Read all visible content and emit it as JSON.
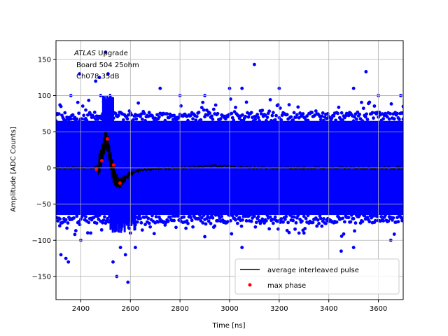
{
  "chart_data": {
    "type": "scatter",
    "xlabel": "Time [ns]",
    "ylabel": "Amplitude [ADC Counts]",
    "xlim": [
      2300,
      3700
    ],
    "ylim": [
      -182,
      176
    ],
    "xticks": [
      2400,
      2600,
      2800,
      3000,
      3200,
      3400,
      3600
    ],
    "yticks": [
      -150,
      -100,
      -50,
      0,
      50,
      100,
      150
    ],
    "grid": true,
    "legend_position": "lower-right",
    "annotation": {
      "line1_italic": "ATLAS",
      "line1_rest": " Upgrade",
      "line2": "Board 504 25ohm",
      "line3": "Ch078 35dB"
    },
    "colors": {
      "samples": "#0000ff",
      "average": "#000000",
      "max_phase": "#ff0000"
    },
    "series": [
      {
        "name": "",
        "kind": "dense-band",
        "band_y": [
          -65,
          65
        ],
        "note_outliers": [
          [
            2305,
            75
          ],
          [
            2315,
            -80
          ],
          [
            2320,
            -120
          ],
          [
            2340,
            -125
          ],
          [
            2350,
            -130
          ],
          [
            2360,
            100
          ],
          [
            2395,
            130
          ],
          [
            2400,
            -100
          ],
          [
            2420,
            80
          ],
          [
            2440,
            -90
          ],
          [
            2460,
            120
          ],
          [
            2475,
            125
          ],
          [
            2500,
            160
          ],
          [
            2510,
            130
          ],
          [
            2530,
            -130
          ],
          [
            2545,
            -150
          ],
          [
            2560,
            -110
          ],
          [
            2580,
            -120
          ],
          [
            2590,
            -158
          ],
          [
            2620,
            -110
          ],
          [
            2720,
            110
          ],
          [
            2900,
            100
          ],
          [
            3000,
            110
          ],
          [
            3050,
            110
          ],
          [
            3100,
            143
          ],
          [
            3200,
            110
          ],
          [
            3500,
            110
          ],
          [
            3550,
            133
          ],
          [
            3600,
            100
          ],
          [
            3690,
            100
          ],
          [
            2480,
            100
          ],
          [
            2600,
            -90
          ],
          [
            2800,
            100
          ],
          [
            3300,
            -90
          ],
          [
            3500,
            -110
          ],
          [
            3450,
            -115
          ],
          [
            2900,
            -95
          ],
          [
            3050,
            -110
          ],
          [
            3650,
            -100
          ],
          [
            3700,
            85
          ]
        ]
      },
      {
        "name": "average interleaved pulse",
        "kind": "line",
        "points": [
          [
            2300,
            0
          ],
          [
            2400,
            0
          ],
          [
            2440,
            0
          ],
          [
            2460,
            1
          ],
          [
            2470,
            4
          ],
          [
            2480,
            10
          ],
          [
            2490,
            25
          ],
          [
            2500,
            38
          ],
          [
            2505,
            38
          ],
          [
            2510,
            30
          ],
          [
            2518,
            15
          ],
          [
            2525,
            0
          ],
          [
            2535,
            -10
          ],
          [
            2545,
            -18
          ],
          [
            2555,
            -22
          ],
          [
            2565,
            -20
          ],
          [
            2580,
            -14
          ],
          [
            2600,
            -8
          ],
          [
            2630,
            -4
          ],
          [
            2660,
            -2
          ],
          [
            2700,
            -1
          ],
          [
            2800,
            0
          ],
          [
            2900,
            2
          ],
          [
            2950,
            3
          ],
          [
            3000,
            2
          ],
          [
            3100,
            0
          ],
          [
            3700,
            0
          ]
        ]
      },
      {
        "name": "max phase",
        "kind": "scatter",
        "points": [
          [
            2463,
            -2
          ],
          [
            2485,
            10
          ],
          [
            2507,
            40
          ],
          [
            2532,
            4
          ],
          [
            2558,
            -21
          ]
        ]
      }
    ]
  }
}
